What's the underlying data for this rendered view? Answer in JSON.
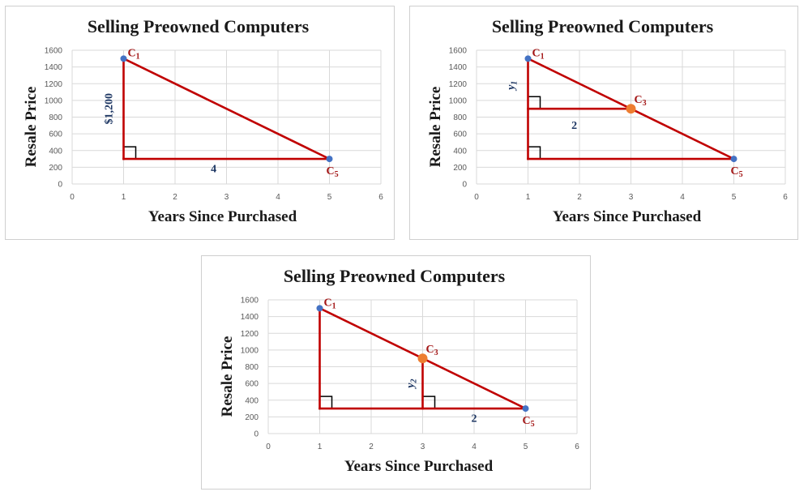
{
  "colors": {
    "line": "#c00000",
    "grid": "#d9d9d9",
    "point_blue": "#4472c4",
    "point_orange": "#ed7d31",
    "label_red": "#a31515",
    "label_navy": "#1f3864"
  },
  "chart_data": [
    {
      "type": "scatter",
      "title": "Selling Preowned Computers",
      "xlabel": "Years Since Purchased",
      "ylabel": "Resale Price",
      "xlim": [
        0,
        6
      ],
      "ylim": [
        0,
        1600
      ],
      "xticks": [
        "0",
        "1",
        "2",
        "3",
        "4",
        "5",
        "6"
      ],
      "yticks": [
        "0",
        "200",
        "400",
        "600",
        "800",
        "1000",
        "1200",
        "1400",
        "1600"
      ],
      "grid": true,
      "points": [
        {
          "label": "C",
          "sub": "1",
          "x": 1,
          "y": 1500,
          "color": "blue"
        },
        {
          "label": "C",
          "sub": "5",
          "x": 5,
          "y": 300,
          "color": "blue"
        }
      ],
      "segments": [
        [
          [
            1,
            1500
          ],
          [
            5,
            300
          ]
        ],
        [
          [
            1,
            1500
          ],
          [
            1,
            300
          ]
        ],
        [
          [
            1,
            300
          ],
          [
            5,
            300
          ]
        ]
      ],
      "right_angles": [
        {
          "x": 1,
          "y": 300,
          "dir": 1
        }
      ],
      "annotations": [
        {
          "text": "$1,200",
          "x": 0.7,
          "y": 900,
          "rotate": true,
          "italic": false
        },
        {
          "text": "4",
          "x": 2.75,
          "y": 190,
          "rotate": false,
          "italic": false
        }
      ]
    },
    {
      "type": "scatter",
      "title": "Selling Preowned Computers",
      "xlabel": "Years Since Purchased",
      "ylabel": "Resale Price",
      "xlim": [
        0,
        6
      ],
      "ylim": [
        0,
        1600
      ],
      "xticks": [
        "0",
        "1",
        "2",
        "3",
        "4",
        "5",
        "6"
      ],
      "yticks": [
        "0",
        "200",
        "400",
        "600",
        "800",
        "1000",
        "1200",
        "1400",
        "1600"
      ],
      "grid": true,
      "points": [
        {
          "label": "C",
          "sub": "1",
          "x": 1,
          "y": 1500,
          "color": "blue"
        },
        {
          "label": "C",
          "sub": "3",
          "x": 3,
          "y": 900,
          "color": "orange"
        },
        {
          "label": "C",
          "sub": "5",
          "x": 5,
          "y": 300,
          "color": "blue"
        }
      ],
      "segments": [
        [
          [
            1,
            1500
          ],
          [
            5,
            300
          ]
        ],
        [
          [
            1,
            1500
          ],
          [
            1,
            300
          ]
        ],
        [
          [
            1,
            300
          ],
          [
            5,
            300
          ]
        ],
        [
          [
            1,
            900
          ],
          [
            3,
            900
          ]
        ]
      ],
      "right_angles": [
        {
          "x": 1,
          "y": 300,
          "dir": 1
        },
        {
          "x": 1,
          "y": 900,
          "dir": 1
        }
      ],
      "annotations": [
        {
          "text": "y",
          "sub": "1",
          "x": 0.65,
          "y": 1180,
          "rotate": true,
          "italic": true
        },
        {
          "text": "2",
          "x": 1.9,
          "y": 710,
          "rotate": false,
          "italic": false
        }
      ]
    },
    {
      "type": "scatter",
      "title": "Selling Preowned Computers",
      "xlabel": "Years Since Purchased",
      "ylabel": "Resale Price",
      "xlim": [
        0,
        6
      ],
      "ylim": [
        0,
        1600
      ],
      "xticks": [
        "0",
        "1",
        "2",
        "3",
        "4",
        "5",
        "6"
      ],
      "yticks": [
        "0",
        "200",
        "400",
        "600",
        "800",
        "1000",
        "1200",
        "1400",
        "1600"
      ],
      "grid": true,
      "points": [
        {
          "label": "C",
          "sub": "1",
          "x": 1,
          "y": 1500,
          "color": "blue"
        },
        {
          "label": "C",
          "sub": "3",
          "x": 3,
          "y": 900,
          "color": "orange"
        },
        {
          "label": "C",
          "sub": "5",
          "x": 5,
          "y": 300,
          "color": "blue"
        }
      ],
      "segments": [
        [
          [
            1,
            1500
          ],
          [
            5,
            300
          ]
        ],
        [
          [
            1,
            1500
          ],
          [
            1,
            300
          ]
        ],
        [
          [
            1,
            300
          ],
          [
            5,
            300
          ]
        ],
        [
          [
            3,
            900
          ],
          [
            3,
            300
          ]
        ]
      ],
      "right_angles": [
        {
          "x": 1,
          "y": 300,
          "dir": 1
        },
        {
          "x": 3,
          "y": 300,
          "dir": 1
        }
      ],
      "annotations": [
        {
          "text": "y",
          "sub": "2",
          "x": 2.75,
          "y": 600,
          "rotate": true,
          "italic": true
        },
        {
          "text": "2",
          "x": 4.0,
          "y": 190,
          "rotate": false,
          "italic": false
        }
      ]
    }
  ]
}
